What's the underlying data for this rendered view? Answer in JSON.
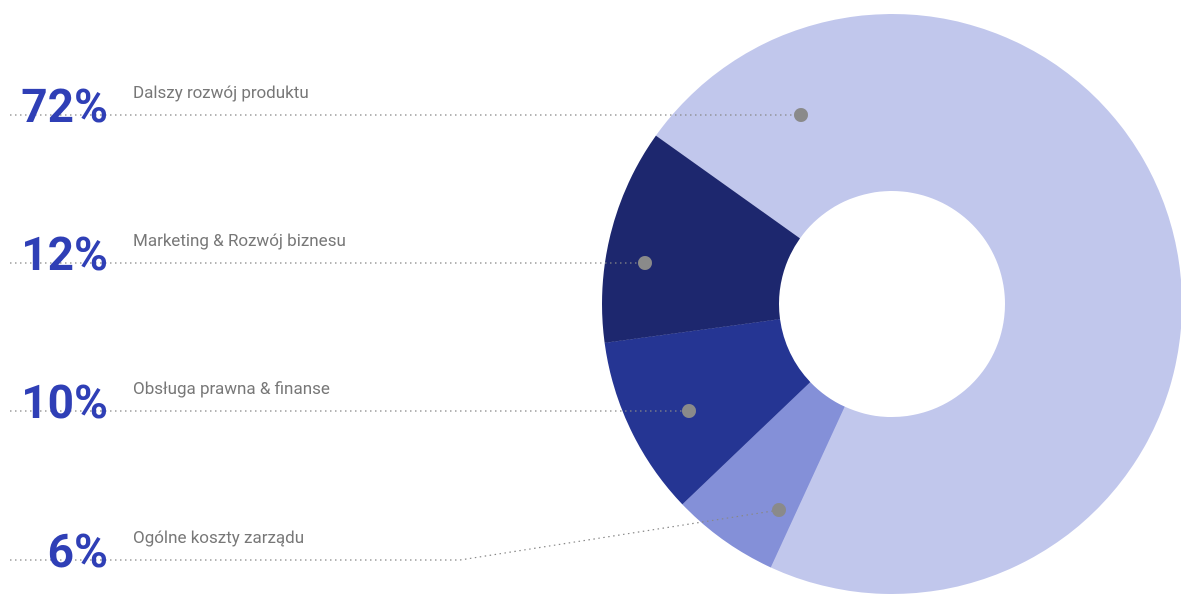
{
  "chart_data": {
    "type": "pie",
    "categories": [
      "Dalszy rozwój produktu",
      "Ogólne koszty zarządu",
      "Obsługa prawna & finanse",
      "Marketing & Rozwój biznesu"
    ],
    "values": [
      72,
      6,
      10,
      12
    ],
    "value_labels": [
      "72%",
      "6%",
      "10%",
      "12%"
    ],
    "colors": [
      "#c1c7ec",
      "#8490d8",
      "#253593",
      "#1d276e"
    ]
  }
}
